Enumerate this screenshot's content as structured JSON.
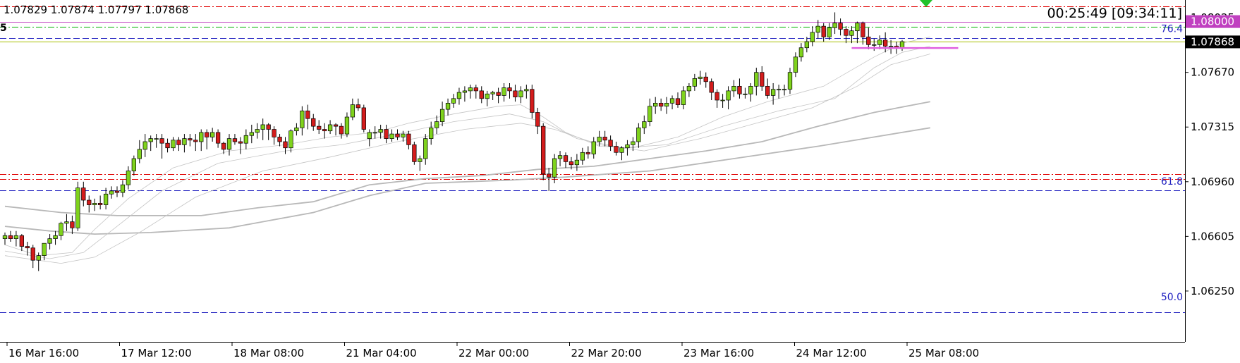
{
  "header": {
    "ohlc": "1.07829 1.07874 1.07797 1.07868",
    "symbol_fragment": "5",
    "timer": "00:25:49 [09:34:11]"
  },
  "chart_data": {
    "type": "candlestick",
    "ylim": [
      1.0592,
      1.0814
    ],
    "y_ticks": [
      "1.08025",
      "1.07670",
      "1.07315",
      "1.06960",
      "1.06605",
      "1.06250"
    ],
    "x_ticks": [
      "16 Mar 16:00",
      "17 Mar 12:00",
      "18 Mar 08:00",
      "21 Mar 04:00",
      "22 Mar 00:00",
      "22 Mar 20:00",
      "23 Mar 16:00",
      "24 Mar 12:00",
      "25 Mar 08:00"
    ],
    "price_labels": [
      {
        "text": "1.08000",
        "price": 1.08,
        "bg": "#c040c0",
        "fg": "#ffffff"
      },
      {
        "text": "1.07868",
        "price": 1.07868,
        "bg": "#000000",
        "fg": "#ffffff"
      }
    ],
    "fib_labels": [
      {
        "text": "76.4",
        "price": 1.07937
      },
      {
        "text": "61.8",
        "price": 1.06945
      },
      {
        "text": "50.0",
        "price": 1.06195
      }
    ],
    "levels": [
      {
        "price": 1.08098,
        "color": "#e00000",
        "style": "dashdot"
      },
      {
        "price": 1.08,
        "color": "#c040c0",
        "style": "solid"
      },
      {
        "price": 1.07964,
        "color": "#00b000",
        "style": "dashdot"
      },
      {
        "price": 1.07895,
        "color": "#2020c0",
        "style": "dashed"
      },
      {
        "price": 1.07872,
        "color": "#a8c000",
        "style": "solid"
      },
      {
        "price": 1.07009,
        "color": "#e00000",
        "style": "dashdot"
      },
      {
        "price": 1.06977,
        "color": "#e00000",
        "style": "dashdot"
      },
      {
        "price": 1.06905,
        "color": "#2020c0",
        "style": "dashed"
      },
      {
        "price": 1.06112,
        "color": "#2020c0",
        "style": "dashed"
      }
    ],
    "candles": {
      "open": [
        1.0659,
        1.0661,
        1.0659,
        1.0661,
        1.0654,
        1.0653,
        1.0645,
        1.0648,
        1.0656,
        1.0659,
        1.0661,
        1.0669,
        1.067,
        1.0666,
        1.0692,
        1.0684,
        1.0681,
        1.0682,
        1.0681,
        1.0688,
        1.069,
        1.0689,
        1.0694,
        1.0703,
        1.0711,
        1.0717,
        1.0722,
        1.0724,
        1.0724,
        1.0721,
        1.0718,
        1.0723,
        1.072,
        1.0724,
        1.0723,
        1.0722,
        1.0728,
        1.0725,
        1.0728,
        1.0721,
        1.0717,
        1.0724,
        1.0722,
        1.0721,
        1.0726,
        1.0728,
        1.073,
        1.0733,
        1.073,
        1.0725,
        1.0722,
        1.0718,
        1.0729,
        1.0731,
        1.0742,
        1.0737,
        1.0732,
        1.073,
        1.0729,
        1.0733,
        1.0732,
        1.0727,
        1.0738,
        1.0746,
        1.0744,
        1.0724,
        1.0728,
        1.0728,
        1.073,
        1.0724,
        1.0727,
        1.0725,
        1.0727,
        1.072,
        1.0709,
        1.0711,
        1.0724,
        1.0731,
        1.0735,
        1.0743,
        1.0747,
        1.075,
        1.0754,
        1.0755,
        1.0757,
        1.0755,
        1.075,
        1.0753,
        1.0754,
        1.0752,
        1.0757,
        1.0755,
        1.0751,
        1.0755,
        1.0756,
        1.0741,
        1.0732,
        1.0701,
        1.0699,
        1.0711,
        1.0713,
        1.0709,
        1.0707,
        1.071,
        1.0715,
        1.0714,
        1.0722,
        1.0725,
        1.0723,
        1.0719,
        1.0715,
        1.0718,
        1.072,
        1.0722,
        1.0731,
        1.0735,
        1.0745,
        1.0747,
        1.0745,
        1.0747,
        1.075,
        1.0746,
        1.0755,
        1.0758,
        1.0763,
        1.0764,
        1.0761,
        1.0754,
        1.0749,
        1.0749,
        1.0755,
        1.0758,
        1.0753,
        1.0753,
        1.0758,
        1.0767,
        1.0758,
        1.0752,
        1.0756,
        1.0756,
        1.0756,
        1.0767,
        1.0777,
        1.0783,
        1.0787,
        1.0793,
        1.0797,
        1.079,
        1.0796,
        1.0799,
        1.0795,
        1.0791,
        1.0794,
        1.0799,
        1.079,
        1.0785,
        1.0785,
        1.0788,
        1.0784,
        1.0784,
        1.0783
      ],
      "high": [
        1.0663,
        1.0664,
        1.0664,
        1.0662,
        1.0657,
        1.0655,
        1.065,
        1.0655,
        1.0662,
        1.0664,
        1.067,
        1.0675,
        1.0674,
        1.0696,
        1.0696,
        1.0687,
        1.0685,
        1.0687,
        1.0692,
        1.0693,
        1.0693,
        1.0697,
        1.0706,
        1.0713,
        1.0723,
        1.0727,
        1.0726,
        1.0727,
        1.0727,
        1.0724,
        1.0725,
        1.0725,
        1.0727,
        1.0727,
        1.0727,
        1.073,
        1.073,
        1.0731,
        1.073,
        1.0722,
        1.0727,
        1.0727,
        1.0725,
        1.073,
        1.0733,
        1.0734,
        1.0737,
        1.0734,
        1.0732,
        1.0727,
        1.0725,
        1.073,
        1.0734,
        1.0745,
        1.0746,
        1.074,
        1.0736,
        1.0734,
        1.0736,
        1.0734,
        1.0734,
        1.0741,
        1.075,
        1.075,
        1.0746,
        1.073,
        1.0732,
        1.0733,
        1.0733,
        1.073,
        1.073,
        1.0729,
        1.0729,
        1.0722,
        1.0713,
        1.0727,
        1.0735,
        1.0739,
        1.0748,
        1.075,
        1.0753,
        1.0757,
        1.0758,
        1.0759,
        1.0759,
        1.0758,
        1.0755,
        1.0755,
        1.0757,
        1.076,
        1.076,
        1.0759,
        1.0758,
        1.0759,
        1.0759,
        1.0744,
        1.0734,
        1.0705,
        1.0714,
        1.0716,
        1.0715,
        1.0712,
        1.0714,
        1.0718,
        1.0719,
        1.0725,
        1.0729,
        1.0729,
        1.0726,
        1.0722,
        1.0719,
        1.0723,
        1.0725,
        1.0734,
        1.0739,
        1.075,
        1.0751,
        1.075,
        1.0751,
        1.0752,
        1.0754,
        1.0758,
        1.076,
        1.0766,
        1.0768,
        1.0767,
        1.0763,
        1.0756,
        1.0753,
        1.0758,
        1.0762,
        1.0763,
        1.0757,
        1.076,
        1.077,
        1.0771,
        1.0763,
        1.076,
        1.0759,
        1.0759,
        1.077,
        1.078,
        1.0786,
        1.079,
        1.0797,
        1.0801,
        1.0799,
        1.0799,
        1.0806,
        1.0802,
        1.0797,
        1.0797,
        1.08,
        1.08,
        1.0796,
        1.0789,
        1.0791,
        1.0793,
        1.0788,
        1.0787,
        1.0788
      ],
      "low": [
        1.0655,
        1.0657,
        1.0654,
        1.0651,
        1.0648,
        1.064,
        1.0638,
        1.0645,
        1.0652,
        1.0655,
        1.0658,
        1.0664,
        1.0662,
        1.0664,
        1.068,
        1.0676,
        1.0677,
        1.0678,
        1.0678,
        1.0685,
        1.0686,
        1.0686,
        1.0691,
        1.07,
        1.0708,
        1.0712,
        1.0716,
        1.0718,
        1.0711,
        1.0715,
        1.0716,
        1.0716,
        1.0715,
        1.0719,
        1.0716,
        1.0716,
        1.0717,
        1.0722,
        1.0718,
        1.0714,
        1.0713,
        1.072,
        1.0714,
        1.0717,
        1.0721,
        1.0724,
        1.0723,
        1.0723,
        1.072,
        1.0719,
        1.0714,
        1.0715,
        1.0726,
        1.0726,
        1.073,
        1.0729,
        1.0727,
        1.0724,
        1.0727,
        1.0726,
        1.0724,
        1.0725,
        1.0736,
        1.0742,
        1.0728,
        1.0719,
        1.0724,
        1.0724,
        1.0721,
        1.0722,
        1.0723,
        1.0722,
        1.0717,
        1.0707,
        1.0703,
        1.0707,
        1.072,
        1.0727,
        1.0732,
        1.0739,
        1.0744,
        1.0746,
        1.0748,
        1.075,
        1.075,
        1.0747,
        1.0745,
        1.0749,
        1.0747,
        1.0748,
        1.075,
        1.0748,
        1.0747,
        1.075,
        1.0737,
        1.0727,
        1.0697,
        1.069,
        1.0695,
        1.0706,
        1.0705,
        1.0704,
        1.0703,
        1.0707,
        1.0711,
        1.0711,
        1.0719,
        1.0719,
        1.0716,
        1.0713,
        1.071,
        1.0713,
        1.0716,
        1.0718,
        1.0727,
        1.0732,
        1.074,
        1.0742,
        1.074,
        1.0743,
        1.0744,
        1.0743,
        1.0751,
        1.0755,
        1.0759,
        1.0757,
        1.0749,
        1.0744,
        1.0744,
        1.0743,
        1.0751,
        1.075,
        1.075,
        1.0748,
        1.0752,
        1.0755,
        1.075,
        1.0746,
        1.075,
        1.0752,
        1.0753,
        1.0764,
        1.0774,
        1.078,
        1.0784,
        1.0789,
        1.0787,
        1.0788,
        1.0792,
        1.0791,
        1.0786,
        1.0786,
        1.0786,
        1.0785,
        1.0782,
        1.0781,
        1.0782,
        1.078,
        1.0779,
        1.0779,
        1.0781
      ],
      "close": [
        1.0661,
        1.0659,
        1.0661,
        1.0654,
        1.0653,
        1.0645,
        1.0648,
        1.0656,
        1.0659,
        1.0661,
        1.0669,
        1.067,
        1.0666,
        1.0692,
        1.0684,
        1.0681,
        1.0682,
        1.0681,
        1.0688,
        1.069,
        1.0689,
        1.0694,
        1.0703,
        1.0711,
        1.0717,
        1.0722,
        1.0724,
        1.0724,
        1.0721,
        1.0718,
        1.0723,
        1.072,
        1.0724,
        1.0723,
        1.0722,
        1.0728,
        1.0725,
        1.0728,
        1.0721,
        1.0717,
        1.0724,
        1.0722,
        1.0721,
        1.0726,
        1.0728,
        1.073,
        1.0733,
        1.073,
        1.0725,
        1.0722,
        1.0718,
        1.0729,
        1.0731,
        1.0742,
        1.0737,
        1.0732,
        1.073,
        1.0729,
        1.0733,
        1.0732,
        1.0727,
        1.0738,
        1.0746,
        1.0744,
        1.073,
        1.0728,
        1.0728,
        1.073,
        1.0724,
        1.0727,
        1.0725,
        1.0727,
        1.072,
        1.0709,
        1.0711,
        1.0724,
        1.0731,
        1.0735,
        1.0743,
        1.0747,
        1.075,
        1.0754,
        1.0755,
        1.0757,
        1.0755,
        1.075,
        1.0753,
        1.0754,
        1.0752,
        1.0757,
        1.0755,
        1.0751,
        1.0755,
        1.0756,
        1.0741,
        1.0732,
        1.0701,
        1.0699,
        1.0711,
        1.0713,
        1.0709,
        1.0707,
        1.071,
        1.0715,
        1.0714,
        1.0722,
        1.0725,
        1.0723,
        1.0719,
        1.0715,
        1.0718,
        1.072,
        1.0722,
        1.0731,
        1.0735,
        1.0745,
        1.0747,
        1.0745,
        1.0747,
        1.075,
        1.0746,
        1.0755,
        1.0758,
        1.0763,
        1.0764,
        1.0761,
        1.0754,
        1.0749,
        1.0749,
        1.0755,
        1.0758,
        1.0753,
        1.0753,
        1.0758,
        1.0767,
        1.0758,
        1.0752,
        1.0756,
        1.0756,
        1.0756,
        1.0767,
        1.0777,
        1.0783,
        1.0787,
        1.0793,
        1.0797,
        1.079,
        1.0796,
        1.0799,
        1.0795,
        1.0791,
        1.0794,
        1.0799,
        1.079,
        1.0785,
        1.0785,
        1.0788,
        1.0784,
        1.0784,
        1.0783,
        1.0787
      ]
    },
    "moving_averages": [
      {
        "color": "#b8b8b8",
        "width": 1.8,
        "points": [
          [
            0,
            1.0667
          ],
          [
            8,
            1.0664
          ],
          [
            16,
            1.0662
          ],
          [
            26,
            1.0663
          ],
          [
            40,
            1.0666
          ],
          [
            55,
            1.0676
          ],
          [
            65,
            1.0687
          ],
          [
            75,
            1.0695
          ],
          [
            90,
            1.0697
          ],
          [
            100,
            1.0699
          ],
          [
            115,
            1.0703
          ],
          [
            130,
            1.0711
          ],
          [
            145,
            1.0719
          ],
          [
            165,
            1.0731
          ]
        ]
      },
      {
        "color": "#b8b8b8",
        "width": 1.8,
        "points": [
          [
            0,
            1.068
          ],
          [
            10,
            1.0676
          ],
          [
            20,
            1.0674
          ],
          [
            35,
            1.0674
          ],
          [
            45,
            1.0679
          ],
          [
            55,
            1.0683
          ],
          [
            65,
            1.0694
          ],
          [
            75,
            1.0698
          ],
          [
            85,
            1.07
          ],
          [
            95,
            1.0704
          ],
          [
            105,
            1.0706
          ],
          [
            115,
            1.0711
          ],
          [
            125,
            1.0716
          ],
          [
            135,
            1.0722
          ],
          [
            145,
            1.0732
          ],
          [
            155,
            1.0741
          ],
          [
            165,
            1.0748
          ]
        ]
      },
      {
        "color": "#c4c4c4",
        "width": 0.8,
        "points": [
          [
            0,
            1.0655
          ],
          [
            6,
            1.0648
          ],
          [
            12,
            1.065
          ],
          [
            16,
            1.0665
          ],
          [
            22,
            1.0685
          ],
          [
            30,
            1.0705
          ],
          [
            40,
            1.0716
          ],
          [
            50,
            1.072
          ],
          [
            58,
            1.0725
          ],
          [
            66,
            1.0728
          ],
          [
            72,
            1.0734
          ],
          [
            80,
            1.074
          ],
          [
            88,
            1.0745
          ],
          [
            92,
            1.0746
          ],
          [
            96,
            1.0738
          ],
          [
            100,
            1.0728
          ],
          [
            106,
            1.0719
          ],
          [
            112,
            1.0718
          ],
          [
            120,
            1.0725
          ],
          [
            128,
            1.0738
          ],
          [
            136,
            1.0748
          ],
          [
            146,
            1.0758
          ],
          [
            155,
            1.0777
          ],
          [
            160,
            1.0786
          ],
          [
            165,
            1.079
          ]
        ]
      },
      {
        "color": "#c4c4c4",
        "width": 0.8,
        "points": [
          [
            0,
            1.0651
          ],
          [
            8,
            1.0646
          ],
          [
            14,
            1.065
          ],
          [
            20,
            1.0667
          ],
          [
            28,
            1.069
          ],
          [
            38,
            1.0708
          ],
          [
            50,
            1.0716
          ],
          [
            60,
            1.072
          ],
          [
            70,
            1.0727
          ],
          [
            80,
            1.0735
          ],
          [
            90,
            1.074
          ],
          [
            96,
            1.0735
          ],
          [
            102,
            1.0724
          ],
          [
            110,
            1.0718
          ],
          [
            118,
            1.072
          ],
          [
            128,
            1.0732
          ],
          [
            138,
            1.0742
          ],
          [
            148,
            1.075
          ],
          [
            155,
            1.077
          ],
          [
            160,
            1.078
          ],
          [
            165,
            1.0784
          ]
        ]
      },
      {
        "color": "#c4c4c4",
        "width": 0.8,
        "points": [
          [
            0,
            1.0648
          ],
          [
            10,
            1.0643
          ],
          [
            16,
            1.0647
          ],
          [
            24,
            1.0663
          ],
          [
            34,
            1.0686
          ],
          [
            46,
            1.0703
          ],
          [
            58,
            1.0712
          ],
          [
            70,
            1.0722
          ],
          [
            82,
            1.073
          ],
          [
            92,
            1.0734
          ],
          [
            98,
            1.073
          ],
          [
            106,
            1.072
          ],
          [
            114,
            1.0716
          ],
          [
            124,
            1.0724
          ],
          [
            134,
            1.0734
          ],
          [
            144,
            1.0744
          ],
          [
            152,
            1.0758
          ],
          [
            158,
            1.0772
          ],
          [
            165,
            1.0779
          ]
        ]
      }
    ],
    "resistance_segment": {
      "start": 151,
      "end": 170,
      "price": 1.07828,
      "color": "#e060e0"
    },
    "marker": {
      "type": "green-down-triangle"
    }
  }
}
